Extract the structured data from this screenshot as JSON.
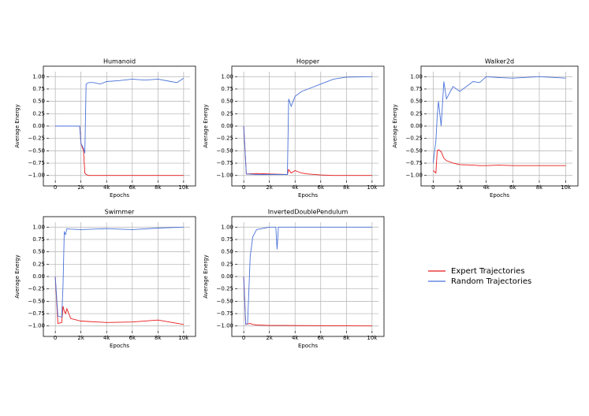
{
  "chart_data": [
    {
      "type": "line",
      "title": "Humanoid",
      "xlabel": "Epochs",
      "ylabel": "Average Energy",
      "grid": true,
      "x": [
        0,
        1000,
        1900,
        2000,
        2200,
        2300,
        2400,
        2600,
        3000,
        3500,
        4000,
        5000,
        6000,
        7000,
        8000,
        9000,
        9500,
        10000
      ],
      "series": [
        {
          "name": "Expert Trajectories",
          "color": "#e8191b",
          "values": [
            0,
            0,
            0,
            -0.35,
            -0.5,
            -0.95,
            -0.98,
            -1.0,
            -1.0,
            -1.0,
            -1.0,
            -1.0,
            -1.0,
            -1.0,
            -1.0,
            -1.0,
            -1.0,
            -1.0
          ]
        },
        {
          "name": "Random Trajectories",
          "color": "#4a72d9",
          "values": [
            0,
            0,
            0,
            -0.35,
            -0.45,
            -0.55,
            0.85,
            0.88,
            0.88,
            0.85,
            0.9,
            0.92,
            0.95,
            0.93,
            0.95,
            0.9,
            0.88,
            0.97
          ]
        }
      ],
      "xlim": [
        -500,
        10500
      ],
      "ylim": [
        -1.1,
        1.1
      ],
      "xticks": [
        0,
        {
          "value": 2000,
          "label": "2k"
        },
        {
          "value": 4000,
          "label": "4k"
        },
        {
          "value": 6000,
          "label": "6k"
        },
        {
          "value": 8000,
          "label": "8k"
        },
        {
          "value": 10000,
          "label": "10k"
        }
      ],
      "yticks": [
        {
          "value": 1,
          "label": "1.00"
        },
        {
          "value": 0.75,
          "label": "0.75"
        },
        {
          "value": 0.5,
          "label": "0.50"
        },
        {
          "value": 0.25,
          "label": "0.25"
        },
        {
          "value": 0,
          "label": "0.00"
        },
        {
          "value": -0.25,
          "label": "−0.25"
        },
        {
          "value": -0.5,
          "label": "−0.50"
        },
        {
          "value": -0.75,
          "label": "−0.75"
        },
        {
          "value": -1,
          "label": "−1.00"
        }
      ]
    },
    {
      "type": "line",
      "title": "Hopper",
      "xlabel": "Epochs",
      "ylabel": "Average Energy",
      "grid": true,
      "x": [
        0,
        200,
        1000,
        2000,
        3400,
        3500,
        3700,
        4000,
        4500,
        5000,
        6000,
        7000,
        8000,
        10000
      ],
      "series": [
        {
          "name": "Expert Trajectories",
          "color": "#e8191b",
          "values": [
            0,
            -0.97,
            -0.96,
            -0.97,
            -0.98,
            -0.88,
            -0.95,
            -0.9,
            -0.95,
            -0.97,
            -0.99,
            -1.0,
            -1.0,
            -1.0
          ]
        },
        {
          "name": "Random Trajectories",
          "color": "#4a72d9",
          "values": [
            0,
            -0.97,
            -0.98,
            -0.98,
            -0.98,
            0.55,
            0.4,
            0.6,
            0.7,
            0.75,
            0.85,
            0.95,
            0.99,
            1.0
          ]
        }
      ],
      "xlim": [
        -500,
        10500
      ],
      "ylim": [
        -1.1,
        1.1
      ],
      "xticks": [
        0,
        {
          "value": 2000,
          "label": "2k"
        },
        {
          "value": 4000,
          "label": "4k"
        },
        {
          "value": 6000,
          "label": "6k"
        },
        {
          "value": 8000,
          "label": "8k"
        },
        {
          "value": 10000,
          "label": "10k"
        }
      ],
      "yticks": [
        {
          "value": 1,
          "label": "1.00"
        },
        {
          "value": 0.75,
          "label": "0.75"
        },
        {
          "value": 0.5,
          "label": "0.50"
        },
        {
          "value": 0.25,
          "label": "0.25"
        },
        {
          "value": 0,
          "label": "0.00"
        },
        {
          "value": -0.25,
          "label": "−0.25"
        },
        {
          "value": -0.5,
          "label": "−0.50"
        },
        {
          "value": -0.75,
          "label": "−0.75"
        },
        {
          "value": -1,
          "label": "−1.00"
        }
      ]
    },
    {
      "type": "line",
      "title": "Walker2d",
      "xlabel": "Epochs",
      "ylabel": "Average Energy",
      "grid": true,
      "x": [
        0,
        200,
        300,
        400,
        600,
        800,
        1000,
        1500,
        2000,
        3000,
        3500,
        4000,
        5000,
        6000,
        8000,
        10000
      ],
      "series": [
        {
          "name": "Expert Trajectories",
          "color": "#e8191b",
          "values": [
            -0.9,
            -0.95,
            -0.5,
            -0.48,
            -0.52,
            -0.65,
            -0.7,
            -0.75,
            -0.78,
            -0.79,
            -0.8,
            -0.8,
            -0.79,
            -0.8,
            -0.8,
            -0.8
          ]
        },
        {
          "name": "Random Trajectories",
          "color": "#4a72d9",
          "values": [
            -0.75,
            -0.3,
            0.2,
            0.5,
            0.0,
            0.9,
            0.55,
            0.8,
            0.7,
            0.9,
            0.88,
            1.0,
            0.98,
            0.97,
            1.0,
            0.97
          ]
        }
      ],
      "xlim": [
        -500,
        10500
      ],
      "ylim": [
        -1.1,
        1.1
      ],
      "xticks": [
        0,
        {
          "value": 2000,
          "label": "2k"
        },
        {
          "value": 4000,
          "label": "4k"
        },
        {
          "value": 6000,
          "label": "6k"
        },
        {
          "value": 8000,
          "label": "8k"
        },
        {
          "value": 10000,
          "label": "10k"
        }
      ],
      "yticks": [
        {
          "value": 1,
          "label": "1.00"
        },
        {
          "value": 0.75,
          "label": "0.75"
        },
        {
          "value": 0.5,
          "label": "0.50"
        },
        {
          "value": 0.25,
          "label": "0.25"
        },
        {
          "value": 0,
          "label": "0.00"
        },
        {
          "value": -0.25,
          "label": "−0.25"
        },
        {
          "value": -0.5,
          "label": "−0.50"
        },
        {
          "value": -0.75,
          "label": "−0.75"
        },
        {
          "value": -1,
          "label": "−1.00"
        }
      ]
    },
    {
      "type": "line",
      "title": "Swimmer",
      "xlabel": "Epochs",
      "ylabel": "Average Energy",
      "grid": true,
      "x": [
        0,
        200,
        500,
        600,
        700,
        800,
        900,
        1200,
        2000,
        4000,
        6000,
        8000,
        10000
      ],
      "series": [
        {
          "name": "Expert Trajectories",
          "color": "#e8191b",
          "values": [
            0,
            -0.95,
            -0.93,
            -0.6,
            -0.7,
            -0.75,
            -0.65,
            -0.85,
            -0.9,
            -0.93,
            -0.92,
            -0.88,
            -0.97
          ]
        },
        {
          "name": "Random Trajectories",
          "color": "#4a72d9",
          "values": [
            0,
            -0.8,
            -0.82,
            -0.2,
            0.9,
            0.85,
            0.97,
            0.96,
            0.95,
            0.97,
            0.95,
            0.98,
            1.0
          ]
        }
      ],
      "xlim": [
        -500,
        10500
      ],
      "ylim": [
        -1.1,
        1.1
      ],
      "xticks": [
        0,
        {
          "value": 2000,
          "label": "2k"
        },
        {
          "value": 4000,
          "label": "4k"
        },
        {
          "value": 6000,
          "label": "6k"
        },
        {
          "value": 8000,
          "label": "8k"
        },
        {
          "value": 10000,
          "label": "10k"
        }
      ],
      "yticks": [
        {
          "value": 1,
          "label": "1.00"
        },
        {
          "value": 0.75,
          "label": "0.75"
        },
        {
          "value": 0.5,
          "label": "0.50"
        },
        {
          "value": 0.25,
          "label": "0.25"
        },
        {
          "value": 0,
          "label": "0.00"
        },
        {
          "value": -0.25,
          "label": "−0.25"
        },
        {
          "value": -0.5,
          "label": "−0.50"
        },
        {
          "value": -0.75,
          "label": "−0.75"
        },
        {
          "value": -1,
          "label": "−1.00"
        }
      ]
    },
    {
      "type": "line",
      "title": "InvertedDoublePendulum",
      "xlabel": "Epochs",
      "ylabel": "Average Energy",
      "grid": true,
      "x": [
        0,
        150,
        300,
        500,
        700,
        1000,
        2000,
        2500,
        2600,
        2700,
        3000,
        10000
      ],
      "series": [
        {
          "name": "Expert Trajectories",
          "color": "#e8191b",
          "values": [
            0,
            -0.97,
            -0.96,
            -0.95,
            -0.97,
            -0.98,
            -0.99,
            -0.99,
            -0.99,
            -0.99,
            -0.99,
            -1.0
          ]
        },
        {
          "name": "Random Trajectories",
          "color": "#4a72d9",
          "values": [
            0,
            -0.97,
            -0.95,
            0.4,
            0.8,
            0.95,
            1.0,
            1.0,
            0.55,
            1.0,
            1.0,
            1.0
          ]
        }
      ],
      "xlim": [
        -500,
        10500
      ],
      "ylim": [
        -1.1,
        1.1
      ],
      "xticks": [
        0,
        {
          "value": 2000,
          "label": "2k"
        },
        {
          "value": 4000,
          "label": "4k"
        },
        {
          "value": 6000,
          "label": "6k"
        },
        {
          "value": 8000,
          "label": "8k"
        },
        {
          "value": 10000,
          "label": "10k"
        }
      ],
      "yticks": [
        {
          "value": 1,
          "label": "1.00"
        },
        {
          "value": 0.75,
          "label": "0.75"
        },
        {
          "value": 0.5,
          "label": "0.50"
        },
        {
          "value": 0.25,
          "label": "0.25"
        },
        {
          "value": 0,
          "label": "0.00"
        },
        {
          "value": -0.25,
          "label": "−0.25"
        },
        {
          "value": -0.5,
          "label": "−0.50"
        },
        {
          "value": -0.75,
          "label": "−0.75"
        },
        {
          "value": -1,
          "label": "−1.00"
        }
      ]
    }
  ]
}
